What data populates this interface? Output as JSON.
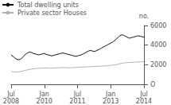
{
  "chart_data": {
    "type": "line",
    "ylabel": "no.",
    "categories": [
      "Jul\n2008",
      null,
      null,
      null,
      null,
      null,
      null,
      null,
      null,
      null,
      null,
      null,
      null,
      null,
      null,
      null,
      null,
      null,
      "Jan\n2010",
      null,
      null,
      null,
      null,
      null,
      null,
      null,
      null,
      null,
      null,
      null,
      null,
      null,
      null,
      null,
      null,
      null,
      "Jul\n2011",
      null,
      null,
      null,
      null,
      null,
      null,
      null,
      null,
      null,
      null,
      null,
      null,
      null,
      null,
      null,
      null,
      null,
      "Jan\n2013",
      null,
      null,
      null,
      null,
      null,
      null,
      null,
      null,
      null,
      null,
      null,
      null,
      null,
      null,
      null,
      null,
      null,
      "Jul\n2014"
    ],
    "series": [
      {
        "name": "Total dwelling units",
        "color": "#111111",
        "values": [
          3000,
          2850,
          2700,
          2550,
          2500,
          2550,
          2700,
          2900,
          3100,
          3200,
          3300,
          3250,
          3150,
          3100,
          3050,
          3000,
          3050,
          3100,
          3150,
          3050,
          3000,
          2950,
          2900,
          2950,
          3000,
          3050,
          3100,
          3150,
          3200,
          3150,
          3100,
          3050,
          3000,
          2950,
          2900,
          2850,
          2900,
          2950,
          3000,
          3100,
          3200,
          3300,
          3400,
          3450,
          3400,
          3350,
          3400,
          3500,
          3600,
          3700,
          3800,
          3900,
          4000,
          4100,
          4200,
          4300,
          4450,
          4600,
          4800,
          4950,
          5050,
          5000,
          4900,
          4800,
          4700,
          4750,
          4800,
          4850,
          4900,
          4950,
          4900,
          4850,
          4800
        ]
      },
      {
        "name": "Private sector Houses",
        "color": "#b0b0b0",
        "values": [
          1300,
          1280,
          1260,
          1250,
          1270,
          1300,
          1330,
          1380,
          1430,
          1480,
          1520,
          1550,
          1580,
          1600,
          1620,
          1640,
          1650,
          1660,
          1670,
          1660,
          1650,
          1640,
          1650,
          1660,
          1670,
          1680,
          1690,
          1700,
          1710,
          1700,
          1690,
          1680,
          1690,
          1700,
          1710,
          1720,
          1730,
          1740,
          1750,
          1760,
          1770,
          1780,
          1790,
          1800,
          1810,
          1820,
          1830,
          1840,
          1850,
          1860,
          1870,
          1880,
          1900,
          1920,
          1940,
          1960,
          1980,
          2000,
          2050,
          2100,
          2150,
          2180,
          2200,
          2220,
          2230,
          2240,
          2250,
          2260,
          2270,
          2280,
          2290,
          2300,
          2310
        ]
      }
    ],
    "ylim": [
      0,
      6000
    ],
    "yticks": [
      {
        "value": 0,
        "label": "O"
      },
      2000,
      4000,
      6000
    ],
    "grid": false,
    "legend": "upper left"
  }
}
